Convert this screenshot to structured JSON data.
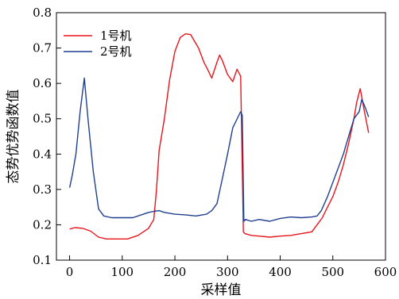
{
  "chart_data": {
    "type": "line",
    "xlabel": "采样值",
    "ylabel": "态势优势函数值",
    "xlim": [
      -25,
      600
    ],
    "ylim": [
      0.1,
      0.8
    ],
    "xticks": [
      0,
      100,
      200,
      300,
      400,
      500,
      600
    ],
    "yticks": [
      0.1,
      0.2,
      0.3,
      0.4,
      0.5,
      0.6,
      0.7,
      0.8
    ],
    "xtick_labels": [
      "0",
      "100",
      "200",
      "300",
      "400",
      "500",
      "600"
    ],
    "ytick_labels": [
      "0.1",
      "0.2",
      "0.3",
      "0.4",
      "0.5",
      "0.6",
      "0.7",
      "0.8"
    ],
    "grid": false,
    "legend_position": "top-left",
    "series": [
      {
        "name": "1号机",
        "color": "#e8141c",
        "x": [
          0,
          10,
          25,
          40,
          55,
          70,
          90,
          110,
          130,
          150,
          160,
          165,
          170,
          180,
          190,
          200,
          210,
          220,
          230,
          235,
          245,
          255,
          262,
          270,
          280,
          285,
          290,
          300,
          310,
          318,
          325,
          330,
          333,
          345,
          360,
          380,
          400,
          420,
          440,
          460,
          470,
          480,
          490,
          500,
          510,
          520,
          530,
          540,
          545,
          552,
          560,
          568
        ],
        "y": [
          0.188,
          0.192,
          0.19,
          0.182,
          0.165,
          0.16,
          0.16,
          0.16,
          0.17,
          0.19,
          0.215,
          0.3,
          0.41,
          0.5,
          0.61,
          0.69,
          0.73,
          0.74,
          0.738,
          0.725,
          0.7,
          0.66,
          0.64,
          0.615,
          0.66,
          0.68,
          0.665,
          0.625,
          0.605,
          0.64,
          0.62,
          0.18,
          0.175,
          0.17,
          0.168,
          0.165,
          0.168,
          0.17,
          0.175,
          0.18,
          0.2,
          0.22,
          0.25,
          0.28,
          0.32,
          0.37,
          0.43,
          0.5,
          0.545,
          0.585,
          0.52,
          0.46
        ]
      },
      {
        "name": "2号机",
        "color": "#1f3f8f",
        "x": [
          0,
          5,
          12,
          20,
          28,
          35,
          45,
          55,
          65,
          80,
          100,
          120,
          140,
          150,
          160,
          170,
          180,
          200,
          220,
          240,
          260,
          270,
          280,
          290,
          300,
          310,
          320,
          325,
          328,
          331,
          334,
          345,
          360,
          380,
          400,
          420,
          440,
          460,
          470,
          478,
          490,
          500,
          510,
          520,
          530,
          540,
          550,
          555,
          562,
          568
        ],
        "y": [
          0.305,
          0.34,
          0.4,
          0.52,
          0.615,
          0.5,
          0.35,
          0.245,
          0.225,
          0.22,
          0.22,
          0.22,
          0.23,
          0.235,
          0.238,
          0.24,
          0.235,
          0.23,
          0.228,
          0.225,
          0.23,
          0.24,
          0.26,
          0.33,
          0.4,
          0.475,
          0.505,
          0.52,
          0.51,
          0.21,
          0.215,
          0.21,
          0.215,
          0.21,
          0.218,
          0.222,
          0.22,
          0.222,
          0.225,
          0.24,
          0.28,
          0.32,
          0.36,
          0.4,
          0.45,
          0.5,
          0.52,
          0.555,
          0.53,
          0.505
        ]
      }
    ]
  }
}
